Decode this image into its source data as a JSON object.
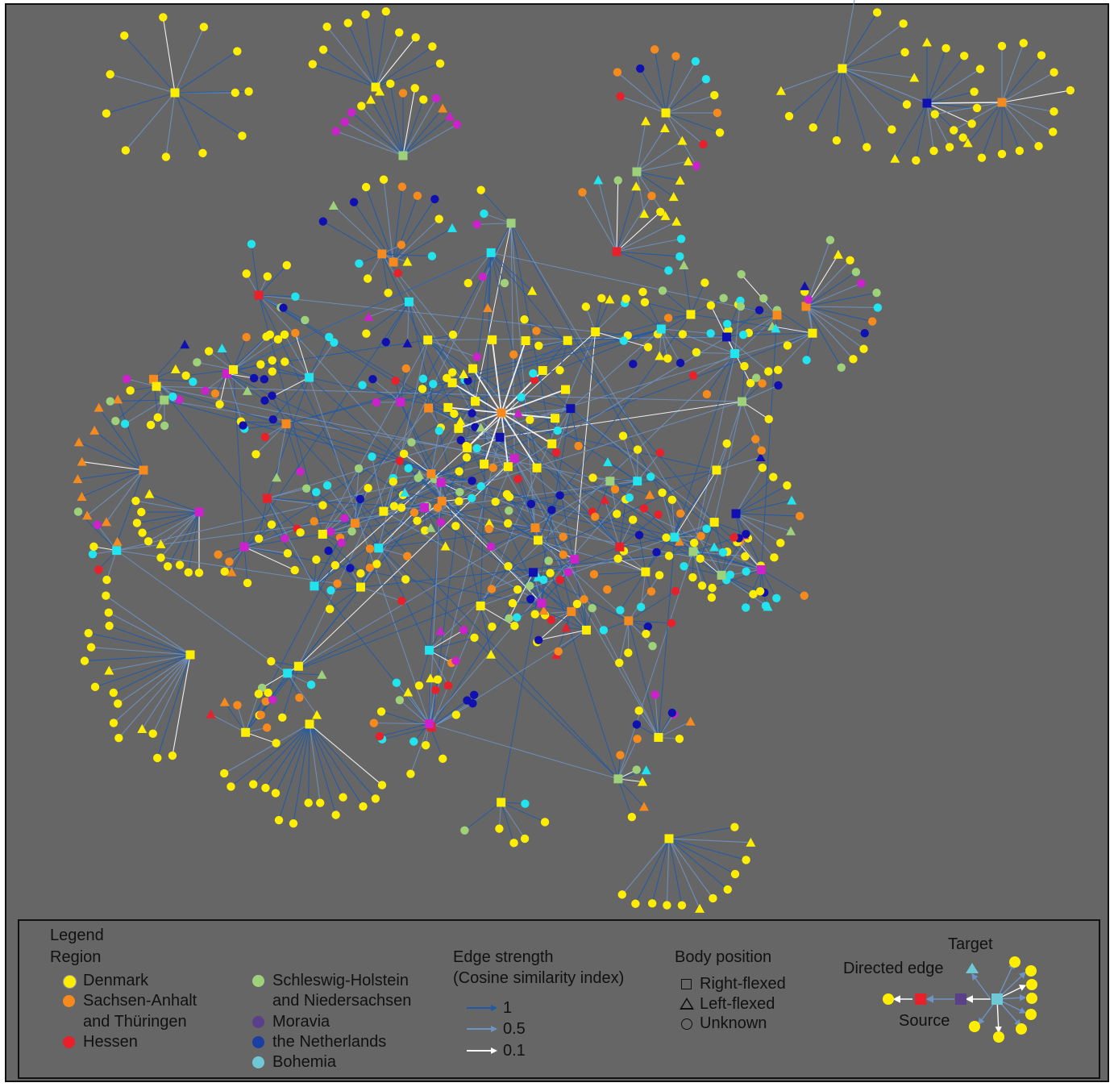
{
  "colors": {
    "background": "#666666",
    "denmark": "#ffee00",
    "sachsen": "#f78a1c",
    "hessen": "#e8202a",
    "schleswig": "#9fd17a",
    "moravia": "#5a3f8a",
    "netherlands": "#1a3fa0",
    "bohemia": "#6fc8d6",
    "magenta": "#cc22cc",
    "cyan": "#22e4ee",
    "darkblue": "#1010b0",
    "edge_strong": "#1e5aa8",
    "edge_mid": "#6f93c3",
    "edge_weak": "#ffffff"
  },
  "legend": {
    "title": "Legend",
    "region_heading": "Region",
    "regions": [
      {
        "label": "Denmark",
        "color": "#ffee00"
      },
      {
        "label": "Sachsen-Anhalt",
        "label2": "and Thüringen",
        "color": "#f78a1c"
      },
      {
        "label": "Hessen",
        "color": "#e8202a"
      },
      {
        "label": "Schleswig-Holstein",
        "label2": "and Niedersachsen",
        "color": "#9fd17a"
      },
      {
        "label": "Moravia",
        "color": "#5a3f8a"
      },
      {
        "label": "the Netherlands",
        "color": "#1a3fa0"
      },
      {
        "label": "Bohemia",
        "color": "#6fc8d6"
      }
    ],
    "edge_heading": "Edge strength",
    "edge_subheading": "(Cosine similarity index)",
    "edges": [
      {
        "label": "1",
        "color": "#1e5aa8"
      },
      {
        "label": "0.5",
        "color": "#6f93c3"
      },
      {
        "label": "0.1",
        "color": "#ffffff"
      }
    ],
    "body_heading": "Body position",
    "body_positions": [
      {
        "label": "Right-flexed",
        "shape": "square"
      },
      {
        "label": "Left-flexed",
        "shape": "triangle"
      },
      {
        "label": "Unknown",
        "shape": "circle"
      }
    ],
    "example": {
      "target_label": "Target",
      "directed_label": "Directed edge",
      "source_label": "Source"
    }
  }
}
